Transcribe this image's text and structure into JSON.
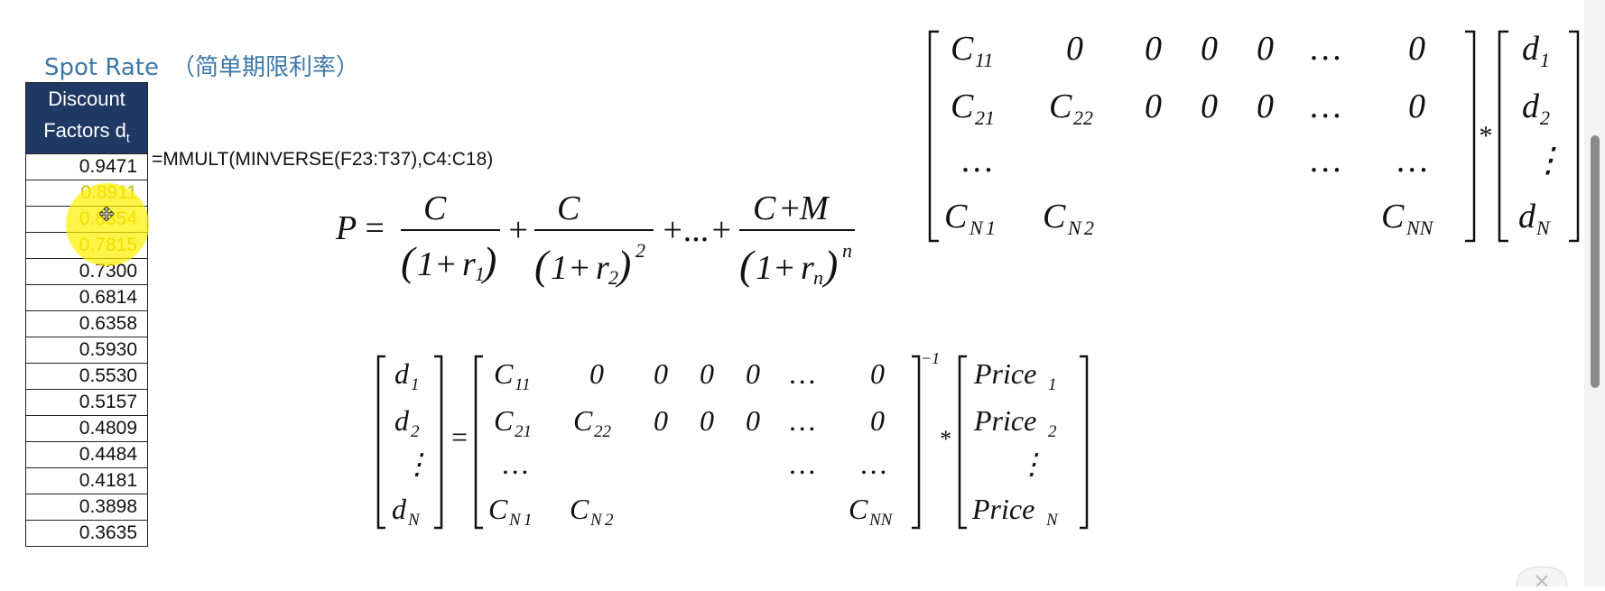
{
  "title": {
    "en": "Spot Rate",
    "zh": "（简单期限利率）"
  },
  "table": {
    "header_line1": "Discount",
    "header_line2": "Factors d",
    "header_sub": "t",
    "values": [
      "0.9471",
      "0.8911",
      "0.8354",
      "0.7815",
      "0.7300",
      "0.6814",
      "0.6358",
      "0.5930",
      "0.5530",
      "0.5157",
      "0.4809",
      "0.4484",
      "0.4181",
      "0.3898",
      "0.3635"
    ]
  },
  "formula": "=MMULT(MINVERSE(F23:T37),C4:C18)",
  "colors": {
    "title": "#3d77a8",
    "header_bg": "#1f3864",
    "highlight": "#fff000"
  },
  "icons": {
    "cursor": "move-cursor-icon"
  }
}
